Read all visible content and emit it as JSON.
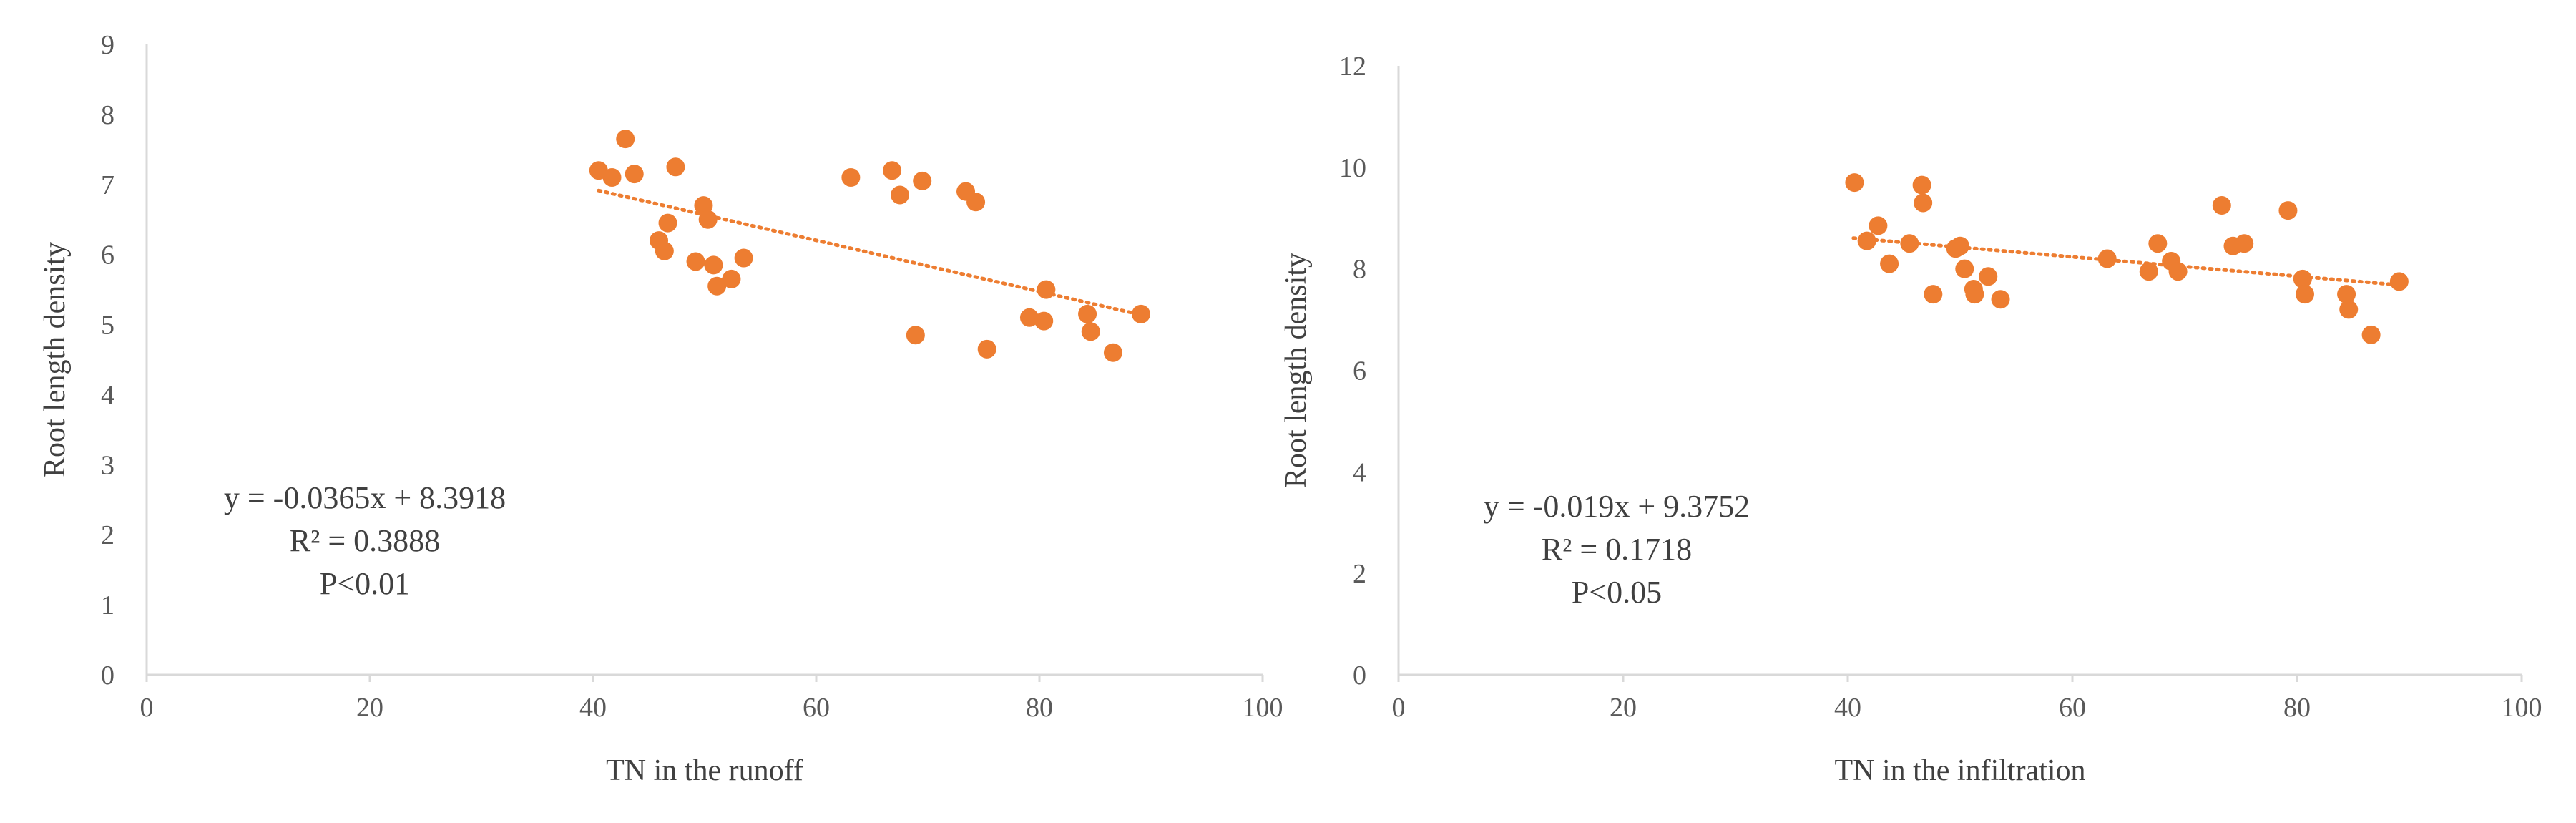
{
  "chart_data": [
    {
      "type": "scatter",
      "title": "",
      "xlabel": "TN in the runoff",
      "ylabel": "Root length density",
      "xlim": [
        0,
        100
      ],
      "ylim": [
        0,
        9
      ],
      "xticks": [
        "0",
        "20",
        "40",
        "60",
        "80",
        "100"
      ],
      "yticks": [
        "0",
        "1",
        "2",
        "3",
        "4",
        "5",
        "6",
        "7",
        "8",
        "9"
      ],
      "grid": false,
      "legend": "none",
      "marker_color": "#ED7D31",
      "trendline": {
        "slope": -0.0365,
        "intercept": 8.3918,
        "x_range": [
          40.5,
          89
        ],
        "style": "dotted",
        "color": "#ED7D31"
      },
      "annotations": [
        "y = -0.0365x + 8.3918",
        "R² = 0.3888",
        "P<0.01"
      ],
      "points": [
        {
          "x": 40.5,
          "y": 7.2
        },
        {
          "x": 41.7,
          "y": 7.1
        },
        {
          "x": 42.9,
          "y": 7.65
        },
        {
          "x": 43.7,
          "y": 7.15
        },
        {
          "x": 45.9,
          "y": 6.2
        },
        {
          "x": 46.4,
          "y": 6.05
        },
        {
          "x": 46.7,
          "y": 6.45
        },
        {
          "x": 47.4,
          "y": 7.25
        },
        {
          "x": 49.2,
          "y": 5.9
        },
        {
          "x": 49.9,
          "y": 6.7
        },
        {
          "x": 50.3,
          "y": 6.5
        },
        {
          "x": 50.8,
          "y": 5.85
        },
        {
          "x": 51.1,
          "y": 5.55
        },
        {
          "x": 52.4,
          "y": 5.65
        },
        {
          "x": 53.5,
          "y": 5.95
        },
        {
          "x": 63.1,
          "y": 7.1
        },
        {
          "x": 66.8,
          "y": 7.2
        },
        {
          "x": 67.5,
          "y": 6.85
        },
        {
          "x": 68.9,
          "y": 4.85
        },
        {
          "x": 69.5,
          "y": 7.05
        },
        {
          "x": 73.4,
          "y": 6.9
        },
        {
          "x": 74.3,
          "y": 6.75
        },
        {
          "x": 75.3,
          "y": 4.65
        },
        {
          "x": 79.1,
          "y": 5.1
        },
        {
          "x": 80.4,
          "y": 5.05
        },
        {
          "x": 80.6,
          "y": 5.5
        },
        {
          "x": 84.3,
          "y": 5.15
        },
        {
          "x": 84.6,
          "y": 4.9
        },
        {
          "x": 86.6,
          "y": 4.6
        },
        {
          "x": 89.1,
          "y": 5.15
        }
      ]
    },
    {
      "type": "scatter",
      "title": "",
      "xlabel": "TN in the infiltration",
      "ylabel": "Root length density",
      "xlim": [
        0,
        100
      ],
      "ylim": [
        0,
        12
      ],
      "xticks": [
        "0",
        "20",
        "40",
        "60",
        "80",
        "100"
      ],
      "yticks": [
        "0",
        "2",
        "4",
        "6",
        "8",
        "10",
        "12"
      ],
      "grid": false,
      "legend": "none",
      "marker_color": "#ED7D31",
      "trendline": {
        "slope": -0.019,
        "intercept": 9.3752,
        "x_range": [
          40.5,
          89
        ],
        "style": "dotted",
        "color": "#ED7D31"
      },
      "annotations": [
        "y = -0.019x + 9.3752",
        "R² = 0.1718",
        "P<0.05"
      ],
      "points": [
        {
          "x": 40.6,
          "y": 9.7
        },
        {
          "x": 41.7,
          "y": 8.55
        },
        {
          "x": 42.7,
          "y": 8.85
        },
        {
          "x": 43.7,
          "y": 8.1
        },
        {
          "x": 45.5,
          "y": 8.5
        },
        {
          "x": 46.6,
          "y": 9.65
        },
        {
          "x": 46.7,
          "y": 9.3
        },
        {
          "x": 47.6,
          "y": 7.5
        },
        {
          "x": 49.6,
          "y": 8.4
        },
        {
          "x": 50.0,
          "y": 8.45
        },
        {
          "x": 50.4,
          "y": 8.0
        },
        {
          "x": 51.2,
          "y": 7.6
        },
        {
          "x": 51.3,
          "y": 7.5
        },
        {
          "x": 52.5,
          "y": 7.85
        },
        {
          "x": 53.6,
          "y": 7.4
        },
        {
          "x": 63.1,
          "y": 8.2
        },
        {
          "x": 66.8,
          "y": 7.95
        },
        {
          "x": 67.6,
          "y": 8.5
        },
        {
          "x": 68.8,
          "y": 8.15
        },
        {
          "x": 69.4,
          "y": 7.95
        },
        {
          "x": 73.3,
          "y": 9.25
        },
        {
          "x": 74.3,
          "y": 8.45
        },
        {
          "x": 75.3,
          "y": 8.5
        },
        {
          "x": 79.2,
          "y": 9.15
        },
        {
          "x": 80.5,
          "y": 7.8
        },
        {
          "x": 80.7,
          "y": 7.5
        },
        {
          "x": 84.4,
          "y": 7.5
        },
        {
          "x": 84.6,
          "y": 7.2
        },
        {
          "x": 86.6,
          "y": 6.7
        },
        {
          "x": 89.1,
          "y": 7.75
        }
      ]
    }
  ]
}
